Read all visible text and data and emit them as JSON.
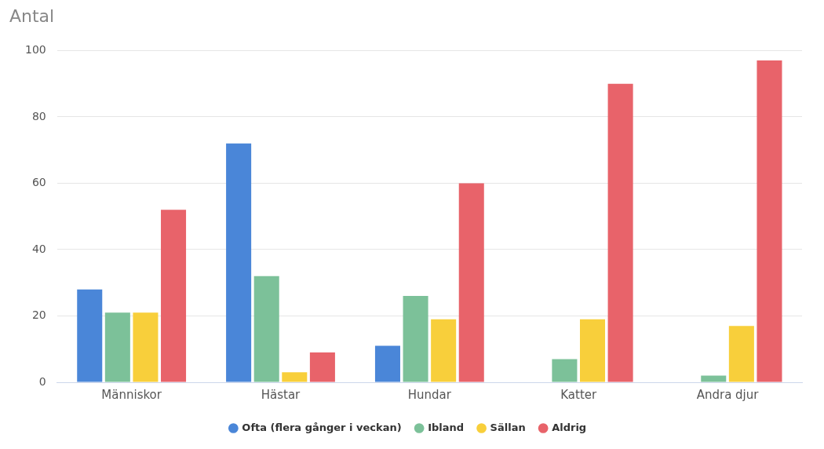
{
  "chart_data": {
    "type": "bar",
    "ylabel": "Antal",
    "categories": [
      "Människor",
      "Hästar",
      "Hundar",
      "Katter",
      "Andra djur"
    ],
    "series": [
      {
        "name": "Ofta (flera gånger i veckan)",
        "color": "#4a86d8",
        "values": [
          28,
          72,
          11,
          0,
          0
        ]
      },
      {
        "name": "Ibland",
        "color": "#7cc199",
        "values": [
          21,
          32,
          26,
          7,
          2
        ]
      },
      {
        "name": "Sällan",
        "color": "#f8cf3b",
        "values": [
          21,
          3,
          19,
          19,
          17
        ]
      },
      {
        "name": "Aldrig",
        "color": "#e8636a",
        "values": [
          52,
          9,
          60,
          90,
          97
        ]
      }
    ],
    "ylim": [
      0,
      100
    ],
    "yticks": [
      0,
      20,
      40,
      60,
      80,
      100
    ],
    "grid": "y",
    "legend": "bottom"
  }
}
